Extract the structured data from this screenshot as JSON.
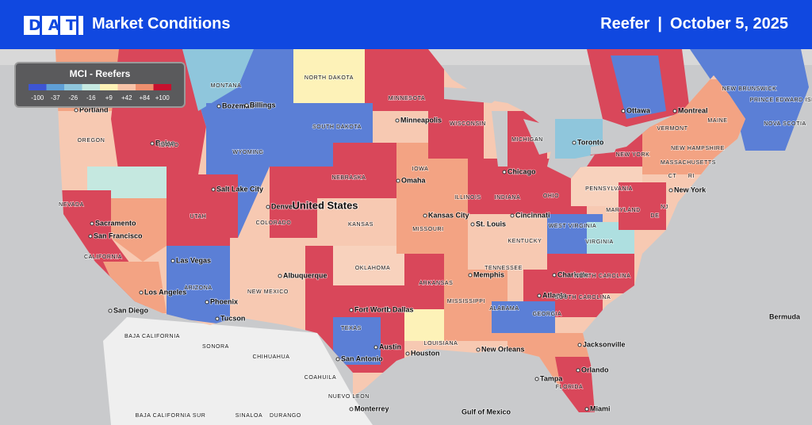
{
  "header": {
    "logo": "DAT",
    "title": "Market Conditions",
    "segment": "Reefer",
    "separator": "|",
    "date": "October 5, 2025"
  },
  "legend": {
    "title": "MCI - Reefers",
    "items": [
      {
        "label": "-100",
        "color": "#3d55d4"
      },
      {
        "label": "-37",
        "color": "#5f9fd6"
      },
      {
        "label": "-26",
        "color": "#8fc6dc"
      },
      {
        "label": "-16",
        "color": "#c5e8e0"
      },
      {
        "label": "+9",
        "color": "#fdf1b6"
      },
      {
        "label": "+42",
        "color": "#f7c3a8"
      },
      {
        "label": "+84",
        "color": "#ee8f6e"
      },
      {
        "label": "+100",
        "color": "#c8102e"
      }
    ]
  },
  "map": {
    "labels": [
      "MONTANA",
      "NORTH DAKOTA",
      "Bozeman",
      "Billings",
      "Portland",
      "OREGON",
      "Boise",
      "IDAHO",
      "WYOMING",
      "SOUTH DAKOTA",
      "MINNESOTA",
      "Minneapolis",
      "WISCONSIN",
      "MICHIGAN",
      "Toronto",
      "Ottawa",
      "Montreal",
      "VERMONT",
      "NEW HAMPSHIRE",
      "MAINE",
      "NEW BRUNSWICK",
      "PRINCE EDWARD ISLAND",
      "NOVA SCOTIA",
      "MASSACHUSETTS",
      "NEW YORK",
      "CT",
      "RI",
      "New York",
      "PENNSYLVANIA",
      "NEVADA",
      "Sacramento",
      "San Francisco",
      "Salt Lake City",
      "UTAH",
      "Denver",
      "COLORADO",
      "United States",
      "NEBRASKA",
      "Omaha",
      "IOWA",
      "Chicago",
      "ILLINOIS",
      "INDIANA",
      "OHIO",
      "Kansas City",
      "KANSAS",
      "MISSOURI",
      "St. Louis",
      "Cincinnati",
      "KENTUCKY",
      "WEST VIRGINIA",
      "VIRGINIA",
      "MARYLAND",
      "NJ",
      "DE",
      "CALIFORNIA",
      "Las Vegas",
      "ARIZONA",
      "Albuquerque",
      "NEW MEXICO",
      "OKLAHOMA",
      "ARKANSAS",
      "Memphis",
      "TENNESSEE",
      "Charlotte",
      "NORTH CAROLINA",
      "Los Angeles",
      "Phoenix",
      "Tucson",
      "San Diego",
      "Fort Worth",
      "Dallas",
      "MISSISSIPPI",
      "ALABAMA",
      "Atlanta",
      "SOUTH CAROLINA",
      "GEORGIA",
      "TEXAS",
      "Austin",
      "Houston",
      "San Antonio",
      "LOUISIANA",
      "New Orleans",
      "Jacksonville",
      "Orlando",
      "Tampa",
      "FLORIDA",
      "Miami",
      "Bermuda",
      "BAJA CALIFORNIA",
      "SONORA",
      "CHIHUAHUA",
      "COAHUILA",
      "NUEVO LEON",
      "Monterrey",
      "SINALOA",
      "DURANGO",
      "BAJA CALIFORNIA SUR",
      "Gulf of Mexico"
    ]
  }
}
